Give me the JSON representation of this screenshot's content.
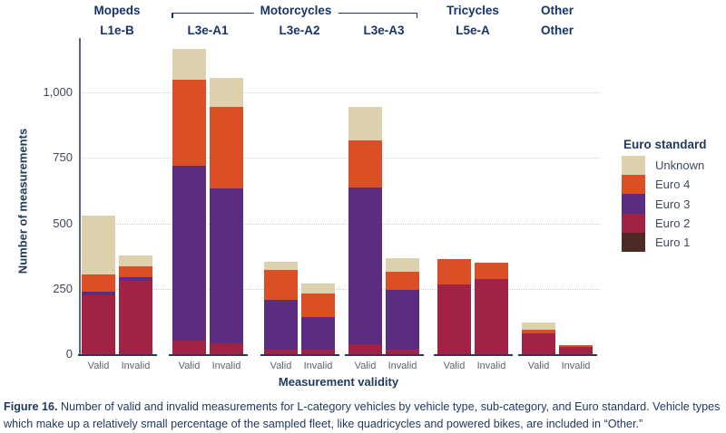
{
  "figure": {
    "caption_prefix": "Figure 16.",
    "caption_text": " Number of valid and invalid measurements for L-category vehicles by vehicle type, sub-category, and Euro standard. Vehicle types which make up a relatively small percentage of the sampled fleet, like quadricycles and powered bikes, are included in “Other.”"
  },
  "chart_data": {
    "type": "stacked_bar",
    "title": "",
    "ylabel": "Number of measurements",
    "xlabel": "Measurement validity",
    "ylim": [
      0,
      1200
    ],
    "yticks": [
      {
        "value": 0,
        "label": "0"
      },
      {
        "value": 250,
        "label": "250"
      },
      {
        "value": 500,
        "label": "500"
      },
      {
        "value": 750,
        "label": "750"
      },
      {
        "value": 1000,
        "label": "1,000"
      }
    ],
    "grid": "horizontal dotted gridlines at ticks (except 0)",
    "legend": {
      "title": "Euro standard",
      "position": "right",
      "entries_top_to_bottom": [
        "Unknown",
        "Euro 4",
        "Euro 3",
        "Euro 2",
        "Euro 1"
      ]
    },
    "colors": {
      "Unknown": "#ddd1ad",
      "Euro 4": "#dc4e26",
      "Euro 3": "#5b2d80",
      "Euro 2": "#a02345",
      "Euro 1": "#4d2a23"
    },
    "stack_order_bottom_to_top": [
      "Euro 1",
      "Euro 2",
      "Euro 3",
      "Euro 4",
      "Unknown"
    ],
    "category_spans": [
      {
        "label": "Mopeds",
        "groups": [
          0
        ],
        "bracket": false
      },
      {
        "label": "Motorcycles",
        "groups": [
          1,
          2,
          3
        ],
        "bracket": true
      },
      {
        "label": "Tricycles",
        "groups": [
          4
        ],
        "bracket": false
      },
      {
        "label": "Other",
        "groups": [
          5
        ],
        "bracket": false
      }
    ],
    "groups": [
      {
        "category": "Mopeds",
        "subcategory": "L1e-B",
        "bars": [
          {
            "validity": "Valid",
            "segments": {
              "Euro 2": 225,
              "Euro 3": 13,
              "Euro 4": 67,
              "Unknown": 225
            },
            "total": 530
          },
          {
            "validity": "Invalid",
            "segments": {
              "Euro 2": 283,
              "Euro 3": 12,
              "Euro 4": 40,
              "Unknown": 42
            },
            "total": 377
          }
        ]
      },
      {
        "category": "Motorcycles",
        "subcategory": "L3e-A1",
        "bars": [
          {
            "validity": "Valid",
            "segments": {
              "Euro 2": 52,
              "Euro 3": 669,
              "Euro 4": 326,
              "Unknown": 120
            },
            "total": 1167
          },
          {
            "validity": "Invalid",
            "segments": {
              "Euro 2": 43,
              "Euro 3": 590,
              "Euro 4": 310,
              "Unknown": 112
            },
            "total": 1055
          }
        ]
      },
      {
        "category": "Motorcycles",
        "subcategory": "L3e-A2",
        "bars": [
          {
            "validity": "Valid",
            "segments": {
              "Euro 2": 17,
              "Euro 3": 190,
              "Euro 4": 116,
              "Unknown": 31
            },
            "total": 354
          },
          {
            "validity": "Invalid",
            "segments": {
              "Euro 2": 17,
              "Euro 3": 124,
              "Euro 4": 92,
              "Unknown": 38
            },
            "total": 271
          }
        ]
      },
      {
        "category": "Motorcycles",
        "subcategory": "L3e-A3",
        "bars": [
          {
            "validity": "Valid",
            "segments": {
              "Euro 2": 37,
              "Euro 3": 600,
              "Euro 4": 181,
              "Unknown": 125
            },
            "total": 943
          },
          {
            "validity": "Invalid",
            "segments": {
              "Euro 2": 17,
              "Euro 3": 230,
              "Euro 4": 69,
              "Unknown": 52
            },
            "total": 368
          }
        ]
      },
      {
        "category": "Tricycles",
        "subcategory": "L5e-A",
        "bars": [
          {
            "validity": "Valid",
            "segments": {
              "Euro 2": 267,
              "Euro 4": 95
            },
            "total": 362
          },
          {
            "validity": "Invalid",
            "segments": {
              "Euro 2": 287,
              "Euro 4": 61
            },
            "total": 348
          }
        ]
      },
      {
        "category": "Other",
        "subcategory": "Other",
        "bars": [
          {
            "validity": "Valid",
            "segments": {
              "Euro 2": 80,
              "Euro 4": 13,
              "Unknown": 27
            },
            "total": 120
          },
          {
            "validity": "Invalid",
            "segments": {
              "Euro 2": 26,
              "Euro 4": 8
            },
            "total": 34
          }
        ]
      }
    ]
  }
}
